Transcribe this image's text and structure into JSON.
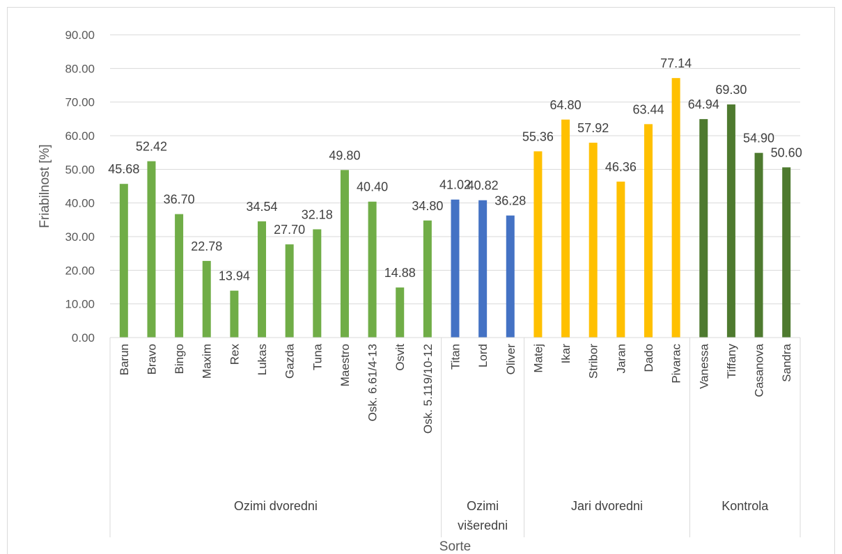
{
  "chart_data": {
    "type": "bar",
    "title": "",
    "xlabel": "Sorte",
    "ylabel": "Friabilnost [%]",
    "ylim": [
      0,
      90
    ],
    "yticks": [
      "0.00",
      "10.00",
      "20.00",
      "30.00",
      "40.00",
      "50.00",
      "60.00",
      "70.00",
      "80.00",
      "90.00"
    ],
    "grid": true,
    "groups": [
      {
        "name": "Ozimi dvoredni",
        "name_lines": [
          "Ozimi dvoredni"
        ],
        "color": "#70ad47",
        "categories": [
          "Barun",
          "Bravo",
          "Bingo",
          "Maxim",
          "Rex",
          "Lukas",
          "Gazda",
          "Tuna",
          "Maestro",
          "Osk. 6.61/4-13",
          "Osvit",
          "Osk. 5.119/10-12"
        ],
        "values": [
          45.68,
          52.42,
          36.7,
          22.78,
          13.94,
          34.54,
          27.7,
          32.18,
          49.8,
          40.4,
          14.88,
          34.8
        ],
        "labels": [
          "45.68",
          "52.42",
          "36.70",
          "22.78",
          "13.94",
          "34.54",
          "27.70",
          "32.18",
          "49.80",
          "40.40",
          "14.88",
          "34.80"
        ]
      },
      {
        "name": "Ozimi višeredni",
        "name_lines": [
          "Ozimi",
          "višeredni"
        ],
        "color": "#4472c4",
        "categories": [
          "Titan",
          "Lord",
          "Oliver"
        ],
        "values": [
          41.02,
          40.82,
          36.28
        ],
        "labels": [
          "41.02",
          "40.82",
          "36.28"
        ]
      },
      {
        "name": "Jari dvoredni",
        "name_lines": [
          "Jari dvoredni"
        ],
        "color": "#ffc000",
        "categories": [
          "Matej",
          "Ikar",
          "Stribor",
          "Jaran",
          "Dado",
          "Pivarac"
        ],
        "values": [
          55.36,
          64.8,
          57.92,
          46.36,
          63.44,
          77.14
        ],
        "labels": [
          "55.36",
          "64.80",
          "57.92",
          "46.36",
          "63.44",
          "77.14"
        ]
      },
      {
        "name": "Kontrola",
        "name_lines": [
          "Kontrola"
        ],
        "color": "#4e7a2f",
        "categories": [
          "Vanessa",
          "Tiffany",
          "Casanova",
          "Sandra"
        ],
        "values": [
          64.94,
          69.3,
          54.9,
          50.6
        ],
        "labels": [
          "64.94",
          "69.30",
          "54.90",
          "50.60"
        ]
      }
    ]
  }
}
